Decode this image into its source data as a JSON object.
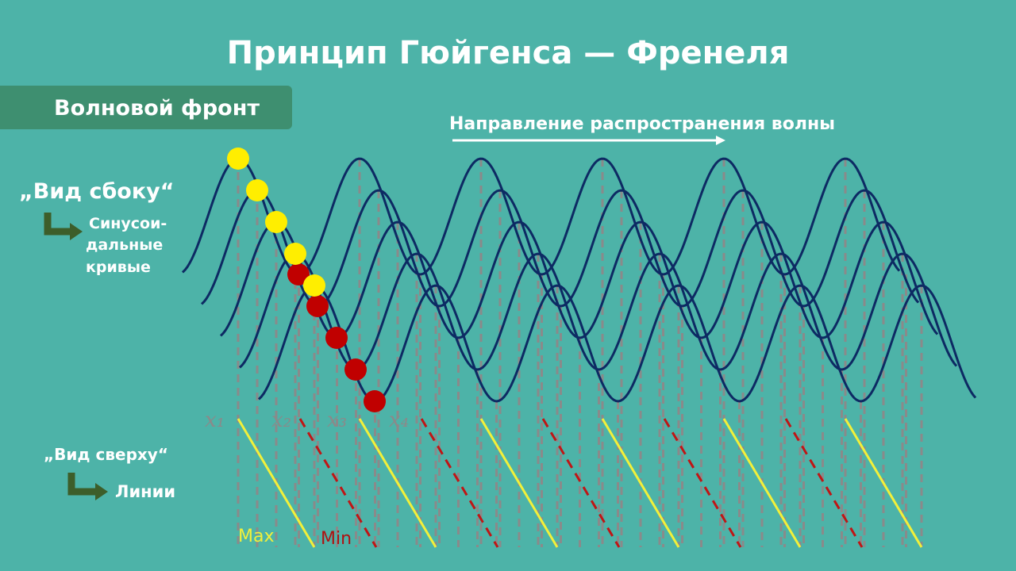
{
  "title": "Принцип Гюйгенса — Френеля",
  "wavefront_label": "Волновой фронт",
  "direction_label": "Направление распространения волны",
  "side_view": {
    "label": "„Вид сбоку“",
    "result": [
      "Синусои-",
      "дальные",
      "кривые"
    ]
  },
  "top_view": {
    "label": "„Вид сверху“",
    "result": "Линии"
  },
  "legend": {
    "max": "Max",
    "min": "Min"
  },
  "x_labels": [
    "x₁",
    "x₂",
    "x₃",
    "x₄"
  ]
}
